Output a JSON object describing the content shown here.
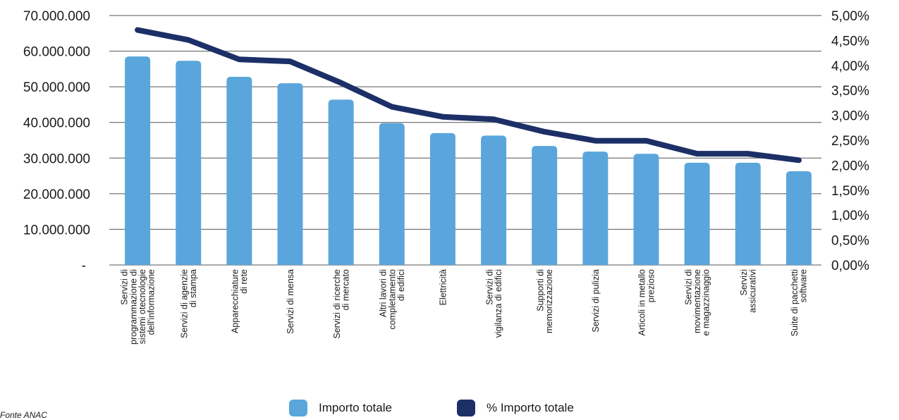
{
  "chart_data": {
    "type": "bar",
    "categories": [
      [
        "Servizi di",
        "programmazione di",
        "sistemi otecnologie",
        "dell'informazione"
      ],
      [
        "Servizi di agenzie",
        "di stampa"
      ],
      [
        "Apparecchiature",
        "di rete"
      ],
      [
        "Servizi di mensa"
      ],
      [
        "Servizi di ricerche",
        "di mercato"
      ],
      [
        "Altri lavori di",
        "completamento",
        "di edifici"
      ],
      [
        "Elettricità"
      ],
      [
        "Servizi di",
        "vigilanza di edifici"
      ],
      [
        "Supporti di",
        "memorizzazione"
      ],
      [
        "Servizi di pulizia"
      ],
      [
        "Articoli in metallo",
        "prezioso"
      ],
      [
        "Servizi di",
        "movimentazione",
        "e magazzinaggio"
      ],
      [
        "Servizi",
        "assicurativi"
      ],
      [
        "Suite di pacchetti",
        "software"
      ]
    ],
    "series": [
      {
        "name": "Importo totale",
        "kind": "bar",
        "axis": "left",
        "color": "#5aa6dc",
        "values": [
          58500000,
          57300000,
          52800000,
          51000000,
          46400000,
          39800000,
          37000000,
          36300000,
          33400000,
          31800000,
          31200000,
          28700000,
          28700000,
          26300000
        ]
      },
      {
        "name": "% Importo totale",
        "kind": "line",
        "axis": "right",
        "color": "#1c2f66",
        "values": [
          4.71,
          4.51,
          4.12,
          4.08,
          3.65,
          3.17,
          2.97,
          2.92,
          2.67,
          2.49,
          2.49,
          2.23,
          2.23,
          2.1
        ]
      }
    ],
    "y_left": {
      "min": 0,
      "max": 70000000,
      "ticks": [
        0,
        10000000,
        20000000,
        30000000,
        40000000,
        50000000,
        60000000,
        70000000
      ],
      "tick_labels": [
        "-",
        "10.000.000",
        "20.000.000",
        "30.000.000",
        "40.000.000",
        "50.000.000",
        "60.000.000",
        "70.000.000"
      ]
    },
    "y_right": {
      "min": 0,
      "max": 5,
      "ticks": [
        0,
        0.5,
        1,
        1.5,
        2,
        2.5,
        3,
        3.5,
        4,
        4.5,
        5
      ],
      "tick_labels": [
        "0,00%",
        "0,50%",
        "1,00%",
        "1,50%",
        "2,00%",
        "2,50%",
        "3,00%",
        "3,50%",
        "4,00%",
        "4,50%",
        "5,00%"
      ]
    },
    "grid": true,
    "legend_position": "bottom-center"
  },
  "legend": {
    "bar_label": "Importo totale",
    "line_label": "% Importo totale"
  },
  "source": "Fonte ANAC"
}
